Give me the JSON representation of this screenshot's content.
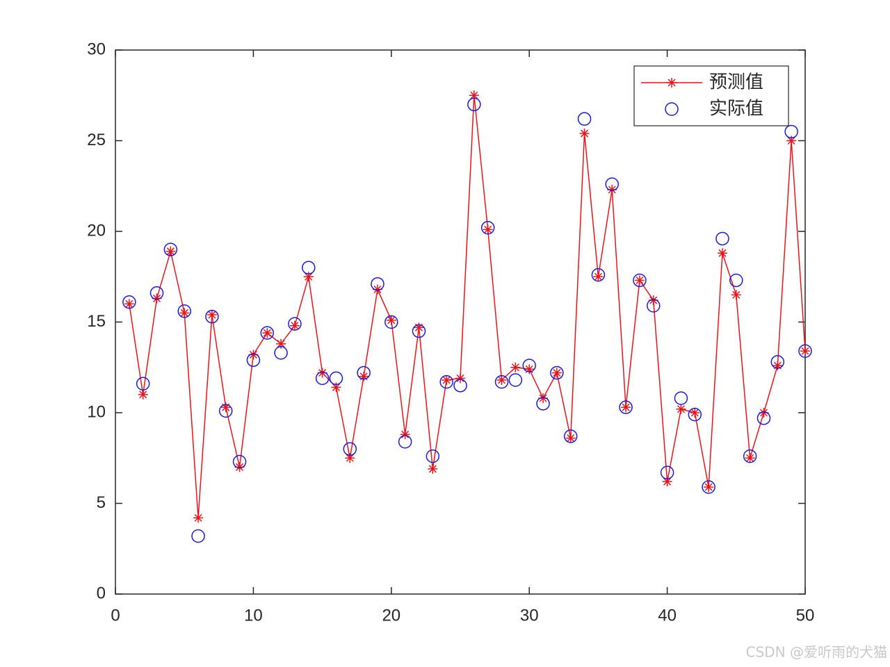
{
  "chart_data": {
    "type": "line",
    "x": [
      1,
      2,
      3,
      4,
      5,
      6,
      7,
      8,
      9,
      10,
      11,
      12,
      13,
      14,
      15,
      16,
      17,
      18,
      19,
      20,
      21,
      22,
      23,
      24,
      25,
      26,
      27,
      28,
      29,
      30,
      31,
      32,
      33,
      34,
      35,
      36,
      37,
      38,
      39,
      40,
      41,
      42,
      43,
      44,
      45,
      46,
      47,
      48,
      49,
      50
    ],
    "series": [
      {
        "name": "预测值",
        "color": "#e8141a",
        "marker": "asterisk",
        "line": true,
        "values": [
          16.0,
          11.0,
          16.3,
          18.9,
          15.5,
          4.2,
          15.4,
          10.3,
          7.0,
          13.2,
          14.4,
          13.8,
          14.8,
          17.5,
          12.2,
          11.4,
          7.5,
          12.0,
          16.8,
          15.1,
          8.8,
          14.7,
          6.9,
          11.8,
          11.9,
          27.5,
          20.1,
          11.8,
          12.5,
          12.4,
          10.8,
          12.2,
          8.6,
          25.4,
          17.5,
          22.3,
          10.3,
          17.3,
          16.2,
          6.2,
          10.2,
          10.0,
          5.9,
          18.8,
          16.5,
          7.5,
          10.0,
          12.6,
          25.0,
          13.4
        ]
      },
      {
        "name": "实际值",
        "color": "#1a1adc",
        "marker": "circle",
        "line": false,
        "values": [
          16.1,
          11.6,
          16.6,
          19.0,
          15.6,
          3.2,
          15.3,
          10.1,
          7.3,
          12.9,
          14.4,
          13.3,
          14.9,
          18.0,
          11.9,
          11.9,
          8.0,
          12.2,
          17.1,
          15.0,
          8.4,
          14.5,
          7.6,
          11.7,
          11.5,
          27.0,
          20.2,
          11.7,
          11.8,
          12.6,
          10.5,
          12.2,
          8.7,
          26.2,
          17.6,
          22.6,
          10.3,
          17.3,
          15.9,
          6.7,
          10.8,
          9.9,
          5.9,
          19.6,
          17.3,
          7.6,
          9.7,
          12.8,
          25.5,
          13.4
        ]
      }
    ],
    "xlim": [
      0,
      50
    ],
    "xticks": [
      0,
      10,
      20,
      30,
      40,
      50
    ],
    "ylim": [
      0,
      30
    ],
    "yticks": [
      0,
      5,
      10,
      15,
      20,
      25,
      30
    ],
    "legend": "top-right",
    "watermark": "CSDN @爱听雨的犬猫"
  }
}
